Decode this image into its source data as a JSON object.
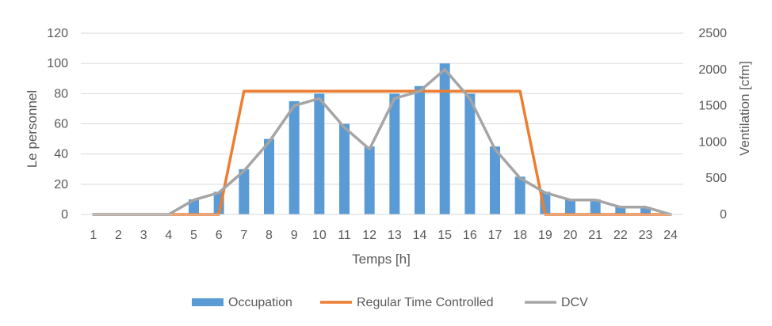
{
  "chart_data": {
    "type": "bar+line",
    "x": [
      "1",
      "2",
      "3",
      "4",
      "5",
      "6",
      "7",
      "8",
      "9",
      "10",
      "11",
      "12",
      "13",
      "14",
      "15",
      "16",
      "17",
      "18",
      "19",
      "20",
      "21",
      "22",
      "23",
      "24"
    ],
    "xlabel": "Temps [h]",
    "ylabel_left": "Le personnel",
    "ylabel_right": "Ventilation [cfm]",
    "ylim_left": [
      0,
      120
    ],
    "yticks_left": [
      0,
      20,
      40,
      60,
      80,
      100,
      120
    ],
    "ylim_right": [
      0,
      2500
    ],
    "yticks_right": [
      0,
      500,
      1000,
      1500,
      2000,
      2500
    ],
    "grid": true,
    "legend_position": "bottom",
    "series": [
      {
        "name": "Occupation",
        "kind": "bar",
        "axis": "left",
        "color": "#5B9BD5",
        "values": [
          0,
          0,
          0,
          0,
          10,
          15,
          30,
          50,
          75,
          80,
          60,
          45,
          80,
          85,
          100,
          80,
          45,
          25,
          15,
          10,
          10,
          5,
          5,
          0
        ]
      },
      {
        "name": "Regular Time Controlled",
        "kind": "line",
        "axis": "right",
        "color": "#ED7D31",
        "values": [
          0,
          0,
          0,
          0,
          0,
          0,
          1700,
          1700,
          1700,
          1700,
          1700,
          1700,
          1700,
          1700,
          1700,
          1700,
          1700,
          1700,
          0,
          0,
          0,
          0,
          0,
          0
        ]
      },
      {
        "name": "DCV",
        "kind": "line",
        "axis": "right",
        "color": "#A5A5A5",
        "values": [
          0,
          0,
          0,
          0,
          200,
          300,
          600,
          1000,
          1500,
          1600,
          1200,
          900,
          1600,
          1700,
          2000,
          1600,
          900,
          500,
          300,
          200,
          200,
          100,
          100,
          0
        ]
      }
    ]
  }
}
